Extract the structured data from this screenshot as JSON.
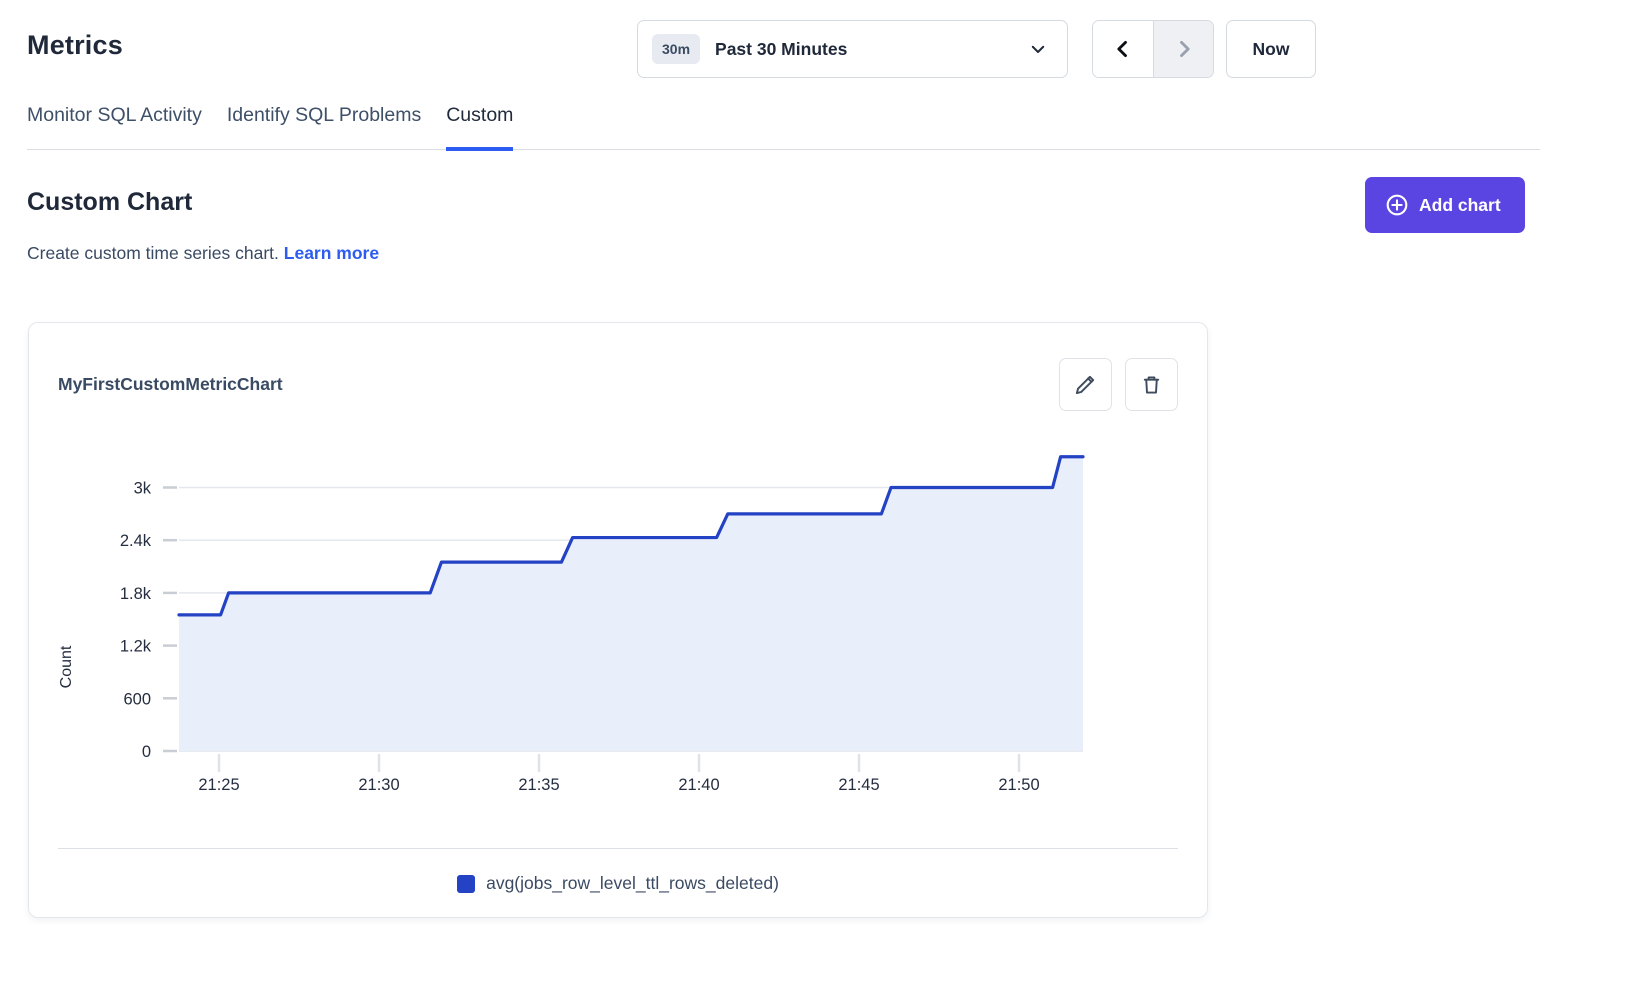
{
  "header": {
    "title": "Metrics",
    "time_selector": {
      "badge": "30m",
      "label": "Past 30 Minutes"
    },
    "now_button": "Now"
  },
  "tabs": [
    {
      "label": "Monitor SQL Activity",
      "active": false
    },
    {
      "label": "Identify SQL Problems",
      "active": false
    },
    {
      "label": "Custom",
      "active": true
    }
  ],
  "section": {
    "title": "Custom Chart",
    "subtitle": "Create custom time series chart.",
    "link_label": "Learn more",
    "add_button": "Add chart"
  },
  "card": {
    "title": "MyFirstCustomMetricChart",
    "edit_icon": "pencil-icon",
    "delete_icon": "trash-icon"
  },
  "colors": {
    "accent_purple": "#5b45e2",
    "link_blue": "#2c5cf2",
    "line_blue": "#2342c4",
    "fill_blue": "#e9eefb",
    "gridline": "#e4e7ed",
    "tick_text": "#242e40"
  },
  "chart_data": {
    "type": "area",
    "subtype": "step-line-with-fill",
    "title": "MyFirstCustomMetricChart",
    "xlabel": "",
    "ylabel": "Count",
    "x_unit": "minutes after 21:00",
    "x_domain": [
      23.75,
      52
    ],
    "y_domain": [
      0,
      3640
    ],
    "grid": "horizontal",
    "legend_position": "bottom-center",
    "x_ticks": [
      {
        "t": 25,
        "label": "21:25"
      },
      {
        "t": 30,
        "label": "21:30"
      },
      {
        "t": 35,
        "label": "21:35"
      },
      {
        "t": 40,
        "label": "21:40"
      },
      {
        "t": 45,
        "label": "21:45"
      },
      {
        "t": 50,
        "label": "21:50"
      }
    ],
    "y_ticks": [
      {
        "v": 0,
        "label": "0"
      },
      {
        "v": 600,
        "label": "600"
      },
      {
        "v": 1200,
        "label": "1.2k"
      },
      {
        "v": 1800,
        "label": "1.8k"
      },
      {
        "v": 2400,
        "label": "2.4k"
      },
      {
        "v": 3000,
        "label": "3k"
      }
    ],
    "series": [
      {
        "name": "avg(jobs_row_level_ttl_rows_deleted)",
        "color": "#2342c4",
        "fill": "#e9eefb",
        "points": [
          [
            23.75,
            1550
          ],
          [
            25.05,
            1550
          ],
          [
            25.3,
            1800
          ],
          [
            31.6,
            1800
          ],
          [
            31.95,
            2150
          ],
          [
            35.7,
            2150
          ],
          [
            36.05,
            2430
          ],
          [
            40.55,
            2430
          ],
          [
            40.9,
            2700
          ],
          [
            45.7,
            2700
          ],
          [
            46.0,
            3000
          ],
          [
            51.05,
            3000
          ],
          [
            51.3,
            3350
          ],
          [
            52.0,
            3350
          ]
        ]
      }
    ]
  }
}
